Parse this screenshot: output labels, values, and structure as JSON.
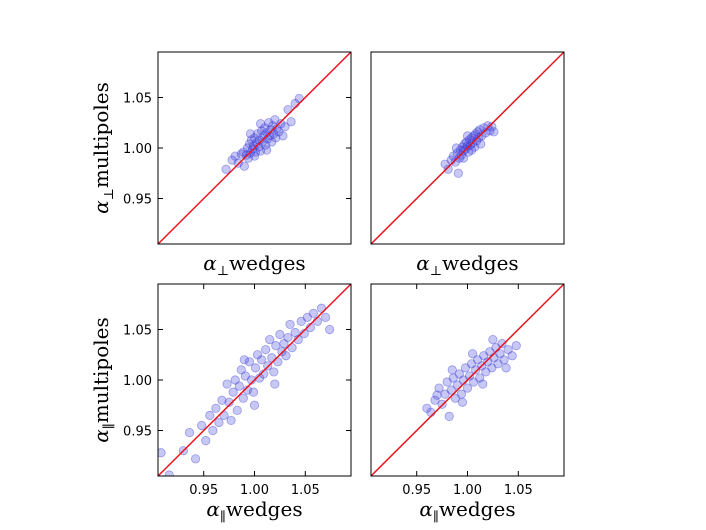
{
  "chart_data": [
    {
      "type": "scatter",
      "panel": "top-left",
      "xlabel": {
        "sym": "α",
        "sub": "⊥",
        "text": "wedges"
      },
      "ylabel": {
        "sym": "α",
        "sub": "⊥",
        "text": "multipoles"
      },
      "xlim": [
        0.905,
        1.095
      ],
      "ylim": [
        0.905,
        1.095
      ],
      "xticks": [],
      "yticks": [
        "0.95",
        "1.00",
        "1.05"
      ],
      "diagonal": true,
      "marker_color": "#3b3bd6",
      "line_color": "#e8141c",
      "points": [
        [
          0.972,
          0.979
        ],
        [
          0.978,
          0.988
        ],
        [
          0.981,
          0.992
        ],
        [
          0.984,
          0.985
        ],
        [
          0.987,
          0.994
        ],
        [
          0.989,
          0.996
        ],
        [
          0.99,
          0.982
        ],
        [
          0.992,
          0.993
        ],
        [
          0.993,
          1.0
        ],
        [
          0.994,
          0.99
        ],
        [
          0.995,
          1.004
        ],
        [
          0.996,
          0.995
        ],
        [
          0.997,
          1.008
        ],
        [
          0.998,
          0.999
        ],
        [
          0.999,
          1.002
        ],
        [
          1.0,
          1.01
        ],
        [
          1.001,
          0.996
        ],
        [
          1.002,
          1.005
        ],
        [
          1.003,
          1.014
        ],
        [
          1.004,
          1.001
        ],
        [
          1.005,
          1.008
        ],
        [
          1.006,
          0.997
        ],
        [
          1.007,
          1.017
        ],
        [
          1.008,
          1.006
        ],
        [
          1.009,
          1.012
        ],
        [
          1.01,
          1.02
        ],
        [
          1.011,
          1.003
        ],
        [
          1.012,
          1.015
        ],
        [
          1.013,
          1.009
        ],
        [
          1.014,
          1.025
        ],
        [
          1.015,
          1.012
        ],
        [
          1.016,
          1.018
        ],
        [
          1.017,
          1.006
        ],
        [
          1.018,
          1.022
        ],
        [
          1.019,
          1.014
        ],
        [
          1.02,
          1.028
        ],
        [
          1.021,
          1.01
        ],
        [
          1.022,
          1.019
        ],
        [
          1.024,
          1.016
        ],
        [
          1.026,
          1.024
        ],
        [
          1.028,
          1.012
        ],
        [
          1.03,
          1.021
        ],
        [
          1.033,
          1.038
        ],
        [
          1.036,
          1.026
        ],
        [
          1.04,
          1.044
        ],
        [
          1.044,
          1.049
        ],
        [
          1.0,
          0.992
        ],
        [
          1.006,
          1.024
        ],
        [
          0.996,
          1.014
        ],
        [
          1.012,
          0.998
        ]
      ]
    },
    {
      "type": "scatter",
      "panel": "top-right",
      "xlabel": {
        "sym": "α",
        "sub": "⊥",
        "text": "wedges"
      },
      "ylabel": {
        "sym": "",
        "sub": "",
        "text": ""
      },
      "xlim": [
        0.905,
        1.095
      ],
      "ylim": [
        0.905,
        1.095
      ],
      "xticks": [],
      "yticks": [],
      "diagonal": true,
      "marker_color": "#3b3bd6",
      "line_color": "#e8141c",
      "points": [
        [
          0.978,
          0.984
        ],
        [
          0.981,
          0.979
        ],
        [
          0.984,
          0.988
        ],
        [
          0.986,
          0.992
        ],
        [
          0.988,
          0.986
        ],
        [
          0.99,
          0.995
        ],
        [
          0.991,
          0.975
        ],
        [
          0.992,
          0.99
        ],
        [
          0.993,
          0.998
        ],
        [
          0.994,
          0.993
        ],
        [
          0.995,
          1.001
        ],
        [
          0.996,
          0.997
        ],
        [
          0.997,
          1.004
        ],
        [
          0.998,
          0.999
        ],
        [
          0.999,
          1.006
        ],
        [
          1.0,
          1.002
        ],
        [
          1.001,
          0.996
        ],
        [
          1.002,
          1.008
        ],
        [
          1.003,
          1.003
        ],
        [
          1.004,
          1.01
        ],
        [
          1.005,
          1.005
        ],
        [
          1.006,
          1.012
        ],
        [
          1.007,
          1.001
        ],
        [
          1.008,
          1.014
        ],
        [
          1.009,
          1.007
        ],
        [
          1.01,
          1.016
        ],
        [
          1.011,
          1.01
        ],
        [
          1.012,
          1.018
        ],
        [
          1.014,
          1.012
        ],
        [
          1.016,
          1.02
        ],
        [
          1.018,
          1.015
        ],
        [
          1.02,
          1.022
        ],
        [
          1.022,
          1.017
        ],
        [
          1.024,
          1.021
        ],
        [
          1.026,
          1.016
        ],
        [
          0.996,
          0.99
        ],
        [
          1.0,
          1.012
        ],
        [
          1.004,
          0.998
        ],
        [
          0.989,
          1.0
        ],
        [
          1.013,
          1.004
        ]
      ]
    },
    {
      "type": "scatter",
      "panel": "bottom-left",
      "xlabel": {
        "sym": "α",
        "sub": "∥",
        "text": "wedges"
      },
      "ylabel": {
        "sym": "α",
        "sub": "∥",
        "text": "multipoles"
      },
      "xlim": [
        0.905,
        1.095
      ],
      "ylim": [
        0.905,
        1.095
      ],
      "xticks": [
        "0.95",
        "1.00",
        "1.05"
      ],
      "yticks": [
        "0.95",
        "1.00",
        "1.05"
      ],
      "diagonal": true,
      "marker_color": "#3b3bd6",
      "line_color": "#e8141c",
      "points": [
        [
          0.908,
          0.928
        ],
        [
          0.916,
          0.906
        ],
        [
          0.93,
          0.93
        ],
        [
          0.936,
          0.948
        ],
        [
          0.942,
          0.922
        ],
        [
          0.948,
          0.955
        ],
        [
          0.952,
          0.94
        ],
        [
          0.956,
          0.965
        ],
        [
          0.959,
          0.95
        ],
        [
          0.962,
          0.972
        ],
        [
          0.965,
          0.958
        ],
        [
          0.968,
          0.98
        ],
        [
          0.97,
          0.965
        ],
        [
          0.973,
          0.996
        ],
        [
          0.975,
          0.978
        ],
        [
          0.977,
          0.96
        ],
        [
          0.979,
          0.988
        ],
        [
          0.981,
          1.0
        ],
        [
          0.983,
          0.97
        ],
        [
          0.985,
          0.994
        ],
        [
          0.987,
          1.01
        ],
        [
          0.989,
          0.982
        ],
        [
          0.991,
          1.004
        ],
        [
          0.993,
          0.99
        ],
        [
          0.995,
          1.018
        ],
        [
          0.997,
          1.0
        ],
        [
          0.999,
          0.988
        ],
        [
          1.001,
          1.012
        ],
        [
          1.003,
          1.025
        ],
        [
          1.005,
          1.002
        ],
        [
          1.007,
          1.02
        ],
        [
          1.009,
          1.006
        ],
        [
          1.011,
          1.03
        ],
        [
          1.013,
          1.014
        ],
        [
          1.015,
          1.04
        ],
        [
          1.017,
          1.022
        ],
        [
          1.019,
          1.008
        ],
        [
          1.021,
          1.034
        ],
        [
          1.023,
          1.018
        ],
        [
          1.025,
          1.045
        ],
        [
          1.027,
          1.028
        ],
        [
          1.029,
          1.036
        ],
        [
          1.031,
          1.024
        ],
        [
          1.033,
          1.042
        ],
        [
          1.035,
          1.055
        ],
        [
          1.037,
          1.032
        ],
        [
          1.04,
          1.047
        ],
        [
          1.043,
          1.04
        ],
        [
          1.046,
          1.058
        ],
        [
          1.049,
          1.046
        ],
        [
          1.052,
          1.062
        ],
        [
          1.055,
          1.052
        ],
        [
          1.058,
          1.066
        ],
        [
          1.062,
          1.058
        ],
        [
          1.066,
          1.071
        ],
        [
          1.07,
          1.062
        ],
        [
          1.074,
          1.05
        ],
        [
          1.0,
          0.975
        ],
        [
          0.99,
          1.02
        ],
        [
          1.02,
          0.996
        ]
      ]
    },
    {
      "type": "scatter",
      "panel": "bottom-right",
      "xlabel": {
        "sym": "α",
        "sub": "∥",
        "text": "wedges"
      },
      "ylabel": {
        "sym": "",
        "sub": "",
        "text": ""
      },
      "xlim": [
        0.905,
        1.095
      ],
      "ylim": [
        0.905,
        1.095
      ],
      "xticks": [
        "0.95",
        "1.00",
        "1.05"
      ],
      "yticks": [],
      "diagonal": true,
      "marker_color": "#3b3bd6",
      "line_color": "#e8141c",
      "points": [
        [
          0.96,
          0.972
        ],
        [
          0.964,
          0.968
        ],
        [
          0.968,
          0.98
        ],
        [
          0.972,
          0.992
        ],
        [
          0.975,
          0.976
        ],
        [
          0.978,
          0.986
        ],
        [
          0.98,
          0.998
        ],
        [
          0.982,
          0.964
        ],
        [
          0.984,
          0.99
        ],
        [
          0.986,
          1.002
        ],
        [
          0.988,
          0.982
        ],
        [
          0.99,
          0.995
        ],
        [
          0.992,
          1.006
        ],
        [
          0.994,
          0.986
        ],
        [
          0.996,
          1.0
        ],
        [
          0.998,
          1.012
        ],
        [
          1.0,
          0.992
        ],
        [
          1.002,
          1.004
        ],
        [
          1.004,
          1.016
        ],
        [
          1.006,
          0.998
        ],
        [
          1.008,
          1.01
        ],
        [
          1.01,
          1.02
        ],
        [
          1.012,
          1.002
        ],
        [
          1.014,
          1.014
        ],
        [
          1.016,
          1.024
        ],
        [
          1.018,
          1.008
        ],
        [
          1.02,
          1.018
        ],
        [
          1.022,
          1.028
        ],
        [
          1.024,
          1.012
        ],
        [
          1.026,
          1.022
        ],
        [
          1.028,
          1.032
        ],
        [
          1.03,
          1.016
        ],
        [
          1.032,
          1.026
        ],
        [
          1.034,
          1.036
        ],
        [
          1.036,
          1.02
        ],
        [
          1.04,
          1.03
        ],
        [
          1.044,
          1.024
        ],
        [
          1.048,
          1.034
        ],
        [
          0.995,
          0.978
        ],
        [
          1.005,
          1.026
        ],
        [
          1.015,
          0.996
        ],
        [
          0.985,
          1.01
        ],
        [
          1.025,
          1.04
        ],
        [
          0.97,
          0.985
        ],
        [
          1.038,
          1.012
        ]
      ]
    }
  ]
}
